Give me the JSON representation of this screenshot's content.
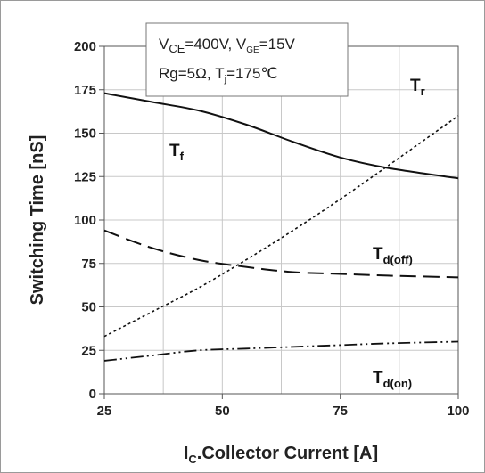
{
  "chart_data": {
    "type": "line",
    "xlabel": "I",
    "xlabel_sub": "C",
    "xlabel_rest": ".Collector Current [A]",
    "ylabel": "Switching Time [nS]",
    "xlim": [
      25,
      100
    ],
    "ylim": [
      0,
      200
    ],
    "x_ticks": [
      "25",
      "50",
      "75",
      "100"
    ],
    "y_ticks": [
      "0",
      "25",
      "50",
      "75",
      "100",
      "125",
      "150",
      "175",
      "200"
    ],
    "grid": true,
    "conditions": {
      "line1": {
        "v1": "V",
        "v1_sub": "CE",
        "v1_rest": "=400V, V",
        "v2_sub": "GE",
        "v2_rest": "=15V"
      },
      "line2": {
        "a": "Rg=5Ω, T",
        "a_sub": "j",
        "a_rest": "=175℃"
      }
    },
    "series": [
      {
        "name": "T",
        "sub": "f",
        "style": "solid",
        "x": [
          25,
          35,
          45,
          55,
          65,
          75,
          85,
          100
        ],
        "y": [
          173,
          168,
          163,
          155,
          145,
          136,
          130,
          124
        ]
      },
      {
        "name": "T",
        "sub": "r",
        "style": "dotted",
        "x": [
          25,
          35,
          45,
          55,
          65,
          75,
          85,
          100
        ],
        "y": [
          33,
          47,
          61,
          77,
          94,
          112,
          131,
          160
        ]
      },
      {
        "name": "T",
        "sub": "d(off)",
        "style": "dashed",
        "x": [
          25,
          35,
          45,
          55,
          65,
          75,
          85,
          100
        ],
        "y": [
          94,
          84,
          77,
          73,
          70,
          69,
          68,
          67
        ]
      },
      {
        "name": "T",
        "sub": "d(on)",
        "style": "dashdotdot",
        "x": [
          25,
          35,
          45,
          55,
          65,
          75,
          85,
          100
        ],
        "y": [
          19,
          22,
          25,
          26,
          27,
          28,
          29,
          30
        ]
      }
    ]
  }
}
